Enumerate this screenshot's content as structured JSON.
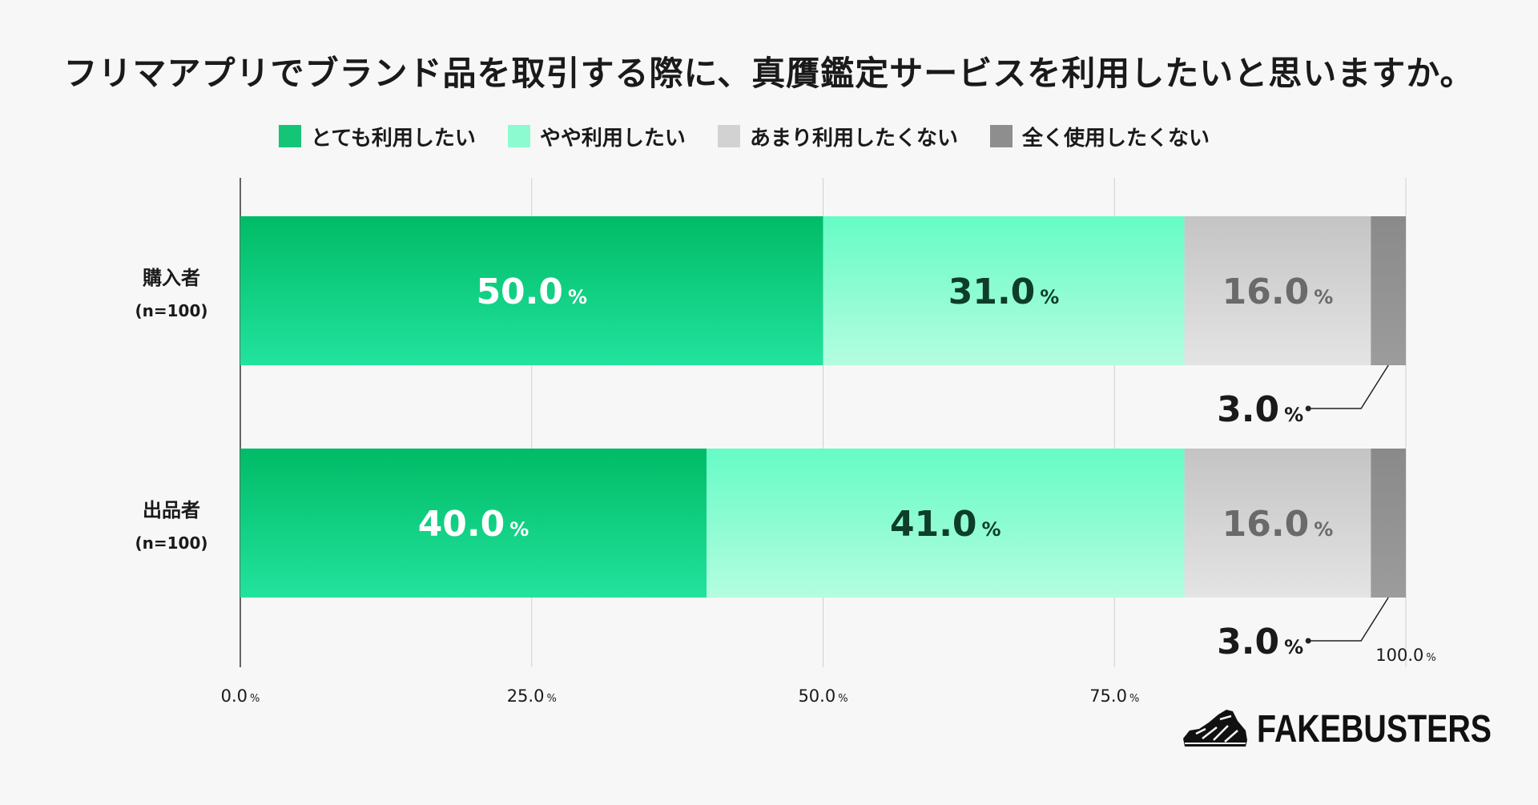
{
  "colors": {
    "very": "#14cf7f",
    "somewhat": "#8cfbd0",
    "not_much": "#cfcfcf",
    "not_at_all": "#8e8e8e"
  },
  "brand": {
    "name": "FAKEBUSTERS",
    "icon": "sneaker-logo-icon"
  },
  "chart_data": {
    "type": "bar",
    "orientation": "horizontal",
    "stacked": true,
    "title": "フリマアプリでブランド品を取引する際に、真贋鑑定サービスを利用したいと思いますか。",
    "categories": [
      "購入者",
      "出品者"
    ],
    "category_notes": [
      "(n=100)",
      "(n=100)"
    ],
    "series": [
      {
        "name": "とても利用したい",
        "values": [
          50.0,
          40.0
        ]
      },
      {
        "name": "やや利用したい",
        "values": [
          31.0,
          41.0
        ]
      },
      {
        "name": "あまり利用したくない",
        "values": [
          16.0,
          16.0
        ]
      },
      {
        "name": "全く使用したくない",
        "values": [
          3.0,
          3.0
        ]
      }
    ],
    "unit": "%",
    "xlim": [
      0,
      100
    ],
    "xticks": [
      {
        "num": "0.0",
        "unit": "%"
      },
      {
        "num": "25.0",
        "unit": "%"
      },
      {
        "num": "50.0",
        "unit": "%"
      },
      {
        "num": "75.0",
        "unit": "%"
      },
      {
        "num": "100.0",
        "unit": "%"
      }
    ],
    "grid": true,
    "legend_position": "top"
  }
}
